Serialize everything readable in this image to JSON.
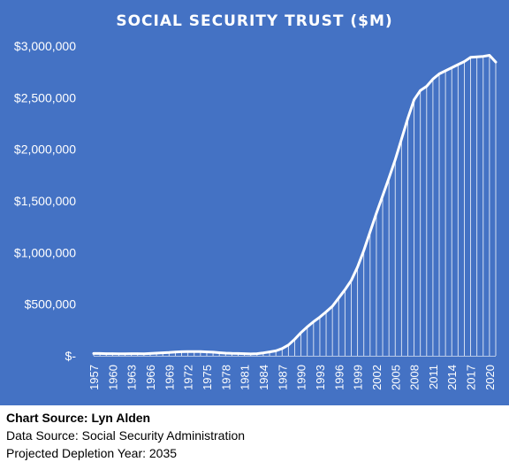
{
  "chart_data": {
    "type": "area",
    "title": "SOCIAL SECURITY TRUST ($M)",
    "xlabel": "",
    "ylabel": "",
    "ylim": [
      0,
      3000000
    ],
    "yticks": [
      0,
      500000,
      1000000,
      1500000,
      2000000,
      2500000,
      3000000
    ],
    "ytick_labels": [
      "$-",
      "$500,000",
      "$1,000,000",
      "$1,500,000",
      "$2,000,000",
      "$2,500,000",
      "$3,000,000"
    ],
    "xtick_labels": [
      "1957",
      "1960",
      "1963",
      "1966",
      "1969",
      "1972",
      "1975",
      "1978",
      "1981",
      "1984",
      "1987",
      "1990",
      "1993",
      "1996",
      "1999",
      "2002",
      "2005",
      "2008",
      "2011",
      "2014",
      "2017",
      "2020"
    ],
    "grid": false,
    "legend": "none",
    "colors": {
      "background": "#4472c4",
      "line": "#ffffff",
      "text": "#ffffff"
    },
    "x": [
      1957,
      1958,
      1959,
      1960,
      1961,
      1962,
      1963,
      1964,
      1965,
      1966,
      1967,
      1968,
      1969,
      1970,
      1971,
      1972,
      1973,
      1974,
      1975,
      1976,
      1977,
      1978,
      1979,
      1980,
      1981,
      1982,
      1983,
      1984,
      1985,
      1986,
      1987,
      1988,
      1989,
      1990,
      1991,
      1992,
      1993,
      1994,
      1995,
      1996,
      1997,
      1998,
      1999,
      2000,
      2001,
      2002,
      2003,
      2004,
      2005,
      2006,
      2007,
      2008,
      2009,
      2010,
      2011,
      2012,
      2013,
      2014,
      2015,
      2016,
      2017,
      2018,
      2019,
      2020,
      2021
    ],
    "series": [
      {
        "values": [
          22000,
          22500,
          21000,
          20500,
          20000,
          19500,
          20500,
          21000,
          20000,
          22500,
          26000,
          29000,
          32000,
          36000,
          39000,
          40500,
          40000,
          40000,
          38000,
          35000,
          30000,
          26000,
          23000,
          22000,
          21000,
          18000,
          21000,
          28000,
          38000,
          48000,
          70000,
          105000,
          160000,
          225000,
          280000,
          330000,
          375000,
          425000,
          480000,
          560000,
          640000,
          730000,
          860000,
          1020000,
          1200000,
          1380000,
          1550000,
          1720000,
          1900000,
          2100000,
          2300000,
          2480000,
          2570000,
          2610000,
          2680000,
          2730000,
          2760000,
          2790000,
          2820000,
          2850000,
          2890000,
          2895000,
          2900000,
          2910000,
          2845000
        ]
      }
    ]
  },
  "credits": {
    "chart_source": "Chart Source: Lyn Alden",
    "data_source": "Data Source: Social Security Administration",
    "depletion": "Projected Depletion Year: 2035"
  }
}
